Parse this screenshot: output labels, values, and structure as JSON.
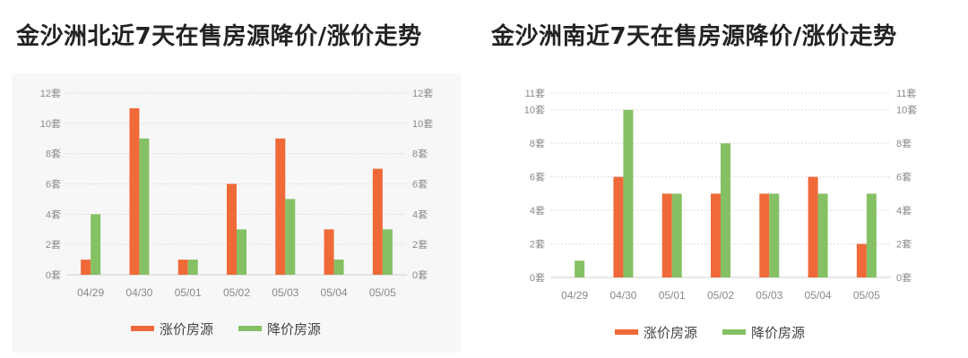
{
  "colors": {
    "rise": "#ef6a38",
    "fall": "#86c064",
    "grid": "#dddddd"
  },
  "chart_data": [
    {
      "type": "bar",
      "title": "金沙洲北近7天在售房源降价/涨价走势",
      "categories": [
        "04/29",
        "04/30",
        "05/01",
        "05/02",
        "05/03",
        "05/04",
        "05/05"
      ],
      "series": [
        {
          "name": "涨价房源",
          "values": [
            1,
            11,
            1,
            6,
            9,
            3,
            7
          ]
        },
        {
          "name": "降价房源",
          "values": [
            4,
            9,
            1,
            3,
            5,
            1,
            3
          ]
        }
      ],
      "ylim": [
        0,
        12
      ],
      "yticks": [
        "0套",
        "2套",
        "4套",
        "6套",
        "8套",
        "10套",
        "12套"
      ],
      "ytick_values": [
        0,
        2,
        4,
        6,
        8,
        10,
        12
      ],
      "dual_axis_labels": true,
      "grid": true,
      "legend_position": "bottom"
    },
    {
      "type": "bar",
      "title": "金沙洲南近7天在售房源降价/涨价走势",
      "categories": [
        "04/29",
        "04/30",
        "05/01",
        "05/02",
        "05/03",
        "05/04",
        "05/05"
      ],
      "series": [
        {
          "name": "涨价房源",
          "values": [
            0,
            6,
            5,
            5,
            5,
            6,
            2
          ]
        },
        {
          "name": "降价房源",
          "values": [
            1,
            10,
            5,
            8,
            5,
            5,
            5
          ]
        }
      ],
      "ylim": [
        0,
        11
      ],
      "yticks": [
        "0套",
        "2套",
        "4套",
        "6套",
        "8套",
        "10套",
        "11套"
      ],
      "ytick_values": [
        0,
        2,
        4,
        6,
        8,
        10,
        11
      ],
      "dual_axis_labels": true,
      "grid": true,
      "legend_position": "bottom"
    }
  ]
}
